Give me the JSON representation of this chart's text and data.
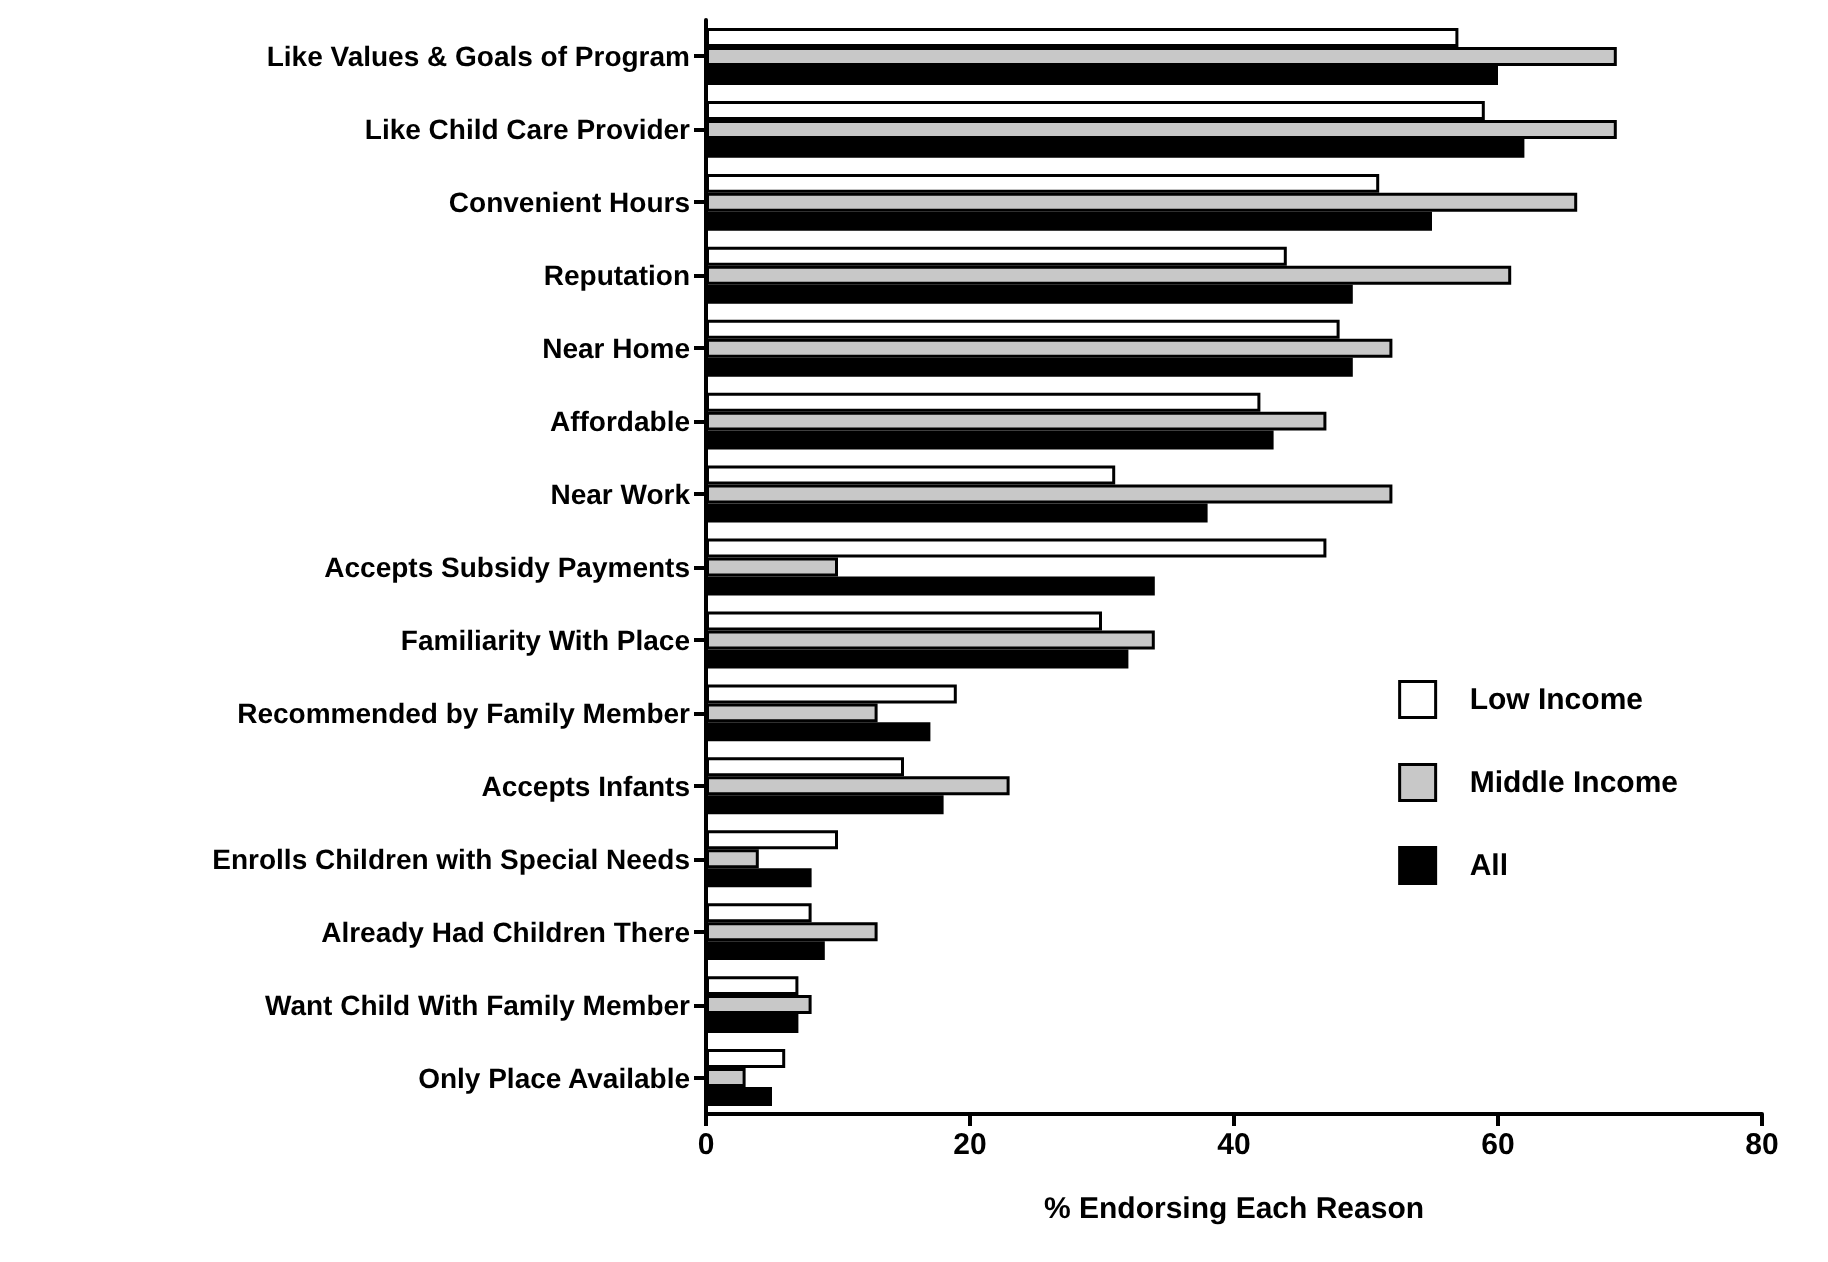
{
  "chart_data": {
    "type": "bar",
    "orientation": "horizontal",
    "xlabel": "% Endorsing Each Reason",
    "categories": [
      "Like Values & Goals of Program",
      "Like Child Care Provider",
      "Convenient Hours",
      "Reputation",
      "Near Home",
      "Affordable",
      "Near Work",
      "Accepts Subsidy Payments",
      "Familiarity With Place",
      "Recommended by Family Member",
      "Accepts Infants",
      "Enrolls Children with Special Needs",
      "Already Had Children There",
      "Want Child With Family Member",
      "Only Place Available"
    ],
    "series": [
      {
        "name": "Low Income",
        "color": "#ffffff",
        "values": [
          57,
          59,
          51,
          44,
          48,
          42,
          31,
          47,
          30,
          19,
          15,
          10,
          8,
          7,
          6
        ]
      },
      {
        "name": "Middle Income",
        "color": "#c8c8c8",
        "values": [
          69,
          69,
          66,
          61,
          52,
          47,
          52,
          10,
          34,
          13,
          23,
          4,
          13,
          8,
          3
        ]
      },
      {
        "name": "All",
        "color": "#000000",
        "values": [
          60,
          62,
          55,
          49,
          49,
          43,
          38,
          34,
          32,
          17,
          18,
          8,
          9,
          7,
          5
        ]
      }
    ],
    "xlim": [
      0,
      80
    ],
    "xticks": [
      0,
      20,
      40,
      60,
      80
    ],
    "grid": false,
    "legend": "right"
  }
}
